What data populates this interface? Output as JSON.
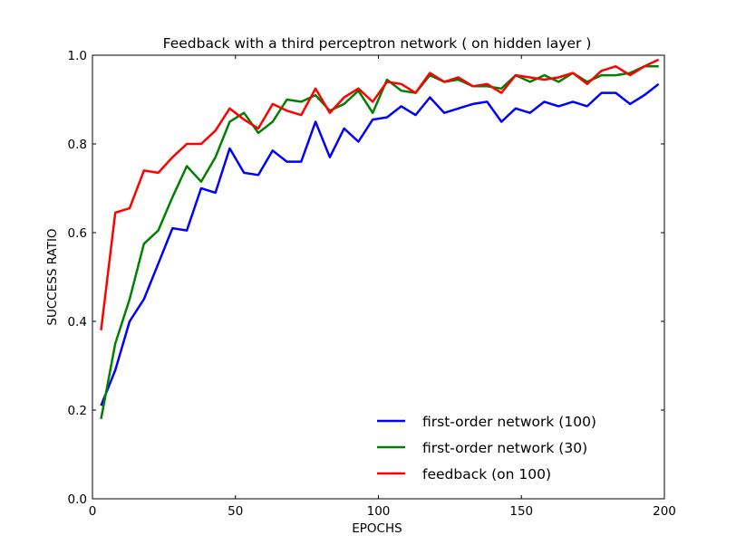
{
  "chart_data": {
    "type": "line",
    "title": "Feedback with a third perceptron network ( on hidden layer )",
    "xlabel": "EPOCHS",
    "ylabel": "SUCCESS RATIO",
    "xlim": [
      0,
      200
    ],
    "ylim": [
      0.0,
      1.0
    ],
    "xticks": [
      0,
      50,
      100,
      150,
      200
    ],
    "yticks": [
      0.0,
      0.2,
      0.4,
      0.6,
      0.8,
      1.0
    ],
    "xtick_labels": [
      "0",
      "50",
      "100",
      "150",
      "200"
    ],
    "ytick_labels": [
      "0.0",
      "0.2",
      "0.4",
      "0.6",
      "0.8",
      "1.0"
    ],
    "grid": false,
    "legend_position": "lower-right",
    "x": [
      3,
      8,
      13,
      18,
      23,
      28,
      33,
      38,
      43,
      48,
      53,
      58,
      63,
      68,
      73,
      78,
      83,
      88,
      93,
      98,
      103,
      108,
      113,
      118,
      123,
      128,
      133,
      138,
      143,
      148,
      153,
      158,
      163,
      168,
      173,
      178,
      183,
      188,
      193,
      198
    ],
    "series": [
      {
        "name": "first-order network (100)",
        "color": "#0000ff",
        "values": [
          0.21,
          0.29,
          0.4,
          0.45,
          0.53,
          0.61,
          0.605,
          0.7,
          0.69,
          0.79,
          0.735,
          0.73,
          0.785,
          0.76,
          0.76,
          0.85,
          0.77,
          0.835,
          0.805,
          0.855,
          0.86,
          0.885,
          0.865,
          0.905,
          0.87,
          0.88,
          0.89,
          0.895,
          0.85,
          0.88,
          0.87,
          0.895,
          0.885,
          0.895,
          0.885,
          0.915,
          0.915,
          0.89,
          0.91,
          0.935
        ]
      },
      {
        "name": "first-order network (30)",
        "color": "#008000",
        "values": [
          0.18,
          0.35,
          0.45,
          0.575,
          0.605,
          0.68,
          0.75,
          0.715,
          0.77,
          0.85,
          0.87,
          0.825,
          0.85,
          0.9,
          0.895,
          0.91,
          0.875,
          0.89,
          0.92,
          0.87,
          0.945,
          0.92,
          0.915,
          0.955,
          0.94,
          0.945,
          0.93,
          0.93,
          0.925,
          0.955,
          0.94,
          0.955,
          0.94,
          0.96,
          0.94,
          0.955,
          0.955,
          0.96,
          0.975,
          0.975
        ]
      },
      {
        "name": "feedback (on 100)",
        "color": "#ff0000",
        "values": [
          0.38,
          0.645,
          0.655,
          0.74,
          0.735,
          0.77,
          0.8,
          0.8,
          0.83,
          0.88,
          0.855,
          0.835,
          0.89,
          0.875,
          0.865,
          0.925,
          0.87,
          0.905,
          0.925,
          0.895,
          0.94,
          0.935,
          0.915,
          0.96,
          0.94,
          0.95,
          0.93,
          0.935,
          0.915,
          0.955,
          0.95,
          0.945,
          0.95,
          0.96,
          0.935,
          0.965,
          0.975,
          0.955,
          0.975,
          0.99
        ]
      }
    ]
  }
}
